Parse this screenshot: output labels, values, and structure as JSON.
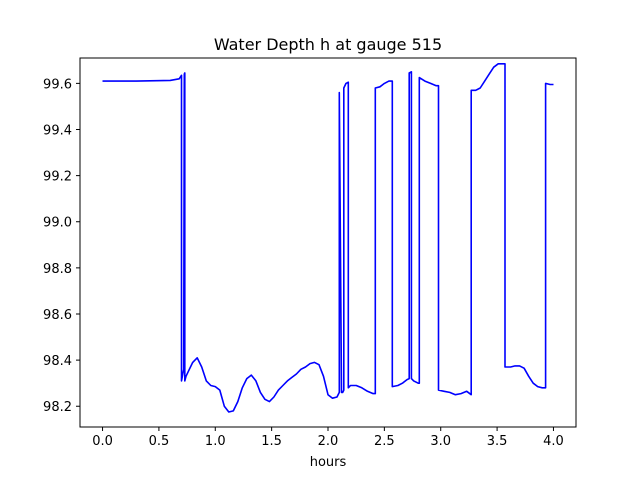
{
  "chart_data": {
    "type": "line",
    "title": "Water Depth h at gauge 515",
    "xlabel": "hours",
    "ylabel": "",
    "xlim": [
      -0.2,
      4.2
    ],
    "ylim": [
      98.11,
      99.71
    ],
    "xticks": [
      0.0,
      0.5,
      1.0,
      1.5,
      2.0,
      2.5,
      3.0,
      3.5,
      4.0
    ],
    "xtick_labels": [
      "0.0",
      "0.5",
      "1.0",
      "1.5",
      "2.0",
      "2.5",
      "3.0",
      "3.5",
      "4.0"
    ],
    "yticks": [
      98.2,
      98.4,
      98.6,
      98.8,
      99.0,
      99.2,
      99.4,
      99.6
    ],
    "ytick_labels": [
      "98.2",
      "98.4",
      "98.6",
      "98.8",
      "99.0",
      "99.2",
      "99.4",
      "99.6"
    ],
    "grid": false,
    "series": [
      {
        "color": "#0000ff",
        "x": [
          0.0,
          0.3,
          0.6,
          0.68,
          0.7,
          0.7,
          0.72,
          0.725,
          0.73,
          0.73,
          0.74,
          0.76,
          0.8,
          0.84,
          0.88,
          0.92,
          0.96,
          1.0,
          1.04,
          1.08,
          1.12,
          1.16,
          1.2,
          1.24,
          1.28,
          1.32,
          1.36,
          1.4,
          1.44,
          1.48,
          1.52,
          1.56,
          1.6,
          1.64,
          1.68,
          1.72,
          1.76,
          1.8,
          1.84,
          1.88,
          1.92,
          1.96,
          2.0,
          2.04,
          2.08,
          2.1,
          2.1,
          2.12,
          2.13,
          2.14,
          2.14,
          2.16,
          2.18,
          2.18,
          2.2,
          2.25,
          2.3,
          2.35,
          2.4,
          2.42,
          2.42,
          2.46,
          2.5,
          2.54,
          2.56,
          2.57,
          2.57,
          2.62,
          2.66,
          2.7,
          2.72,
          2.72,
          2.74,
          2.74,
          2.76,
          2.8,
          2.81,
          2.81,
          2.86,
          2.91,
          2.96,
          2.98,
          2.98,
          3.03,
          3.08,
          3.13,
          3.18,
          3.23,
          3.27,
          3.27,
          3.31,
          3.35,
          3.39,
          3.43,
          3.47,
          3.51,
          3.55,
          3.57,
          3.57,
          3.62,
          3.66,
          3.7,
          3.74,
          3.78,
          3.82,
          3.86,
          3.9,
          3.93,
          3.93,
          3.97,
          4.0
        ],
        "y": [
          99.61,
          99.61,
          99.613,
          99.62,
          99.635,
          98.31,
          98.36,
          99.64,
          99.645,
          98.31,
          98.33,
          98.35,
          98.39,
          98.41,
          98.37,
          98.31,
          98.29,
          98.285,
          98.27,
          98.2,
          98.175,
          98.18,
          98.22,
          98.28,
          98.32,
          98.335,
          98.31,
          98.26,
          98.23,
          98.22,
          98.24,
          98.27,
          98.29,
          98.31,
          98.325,
          98.34,
          98.36,
          98.37,
          98.385,
          98.39,
          98.38,
          98.33,
          98.25,
          98.235,
          98.24,
          98.26,
          99.56,
          98.26,
          98.26,
          98.27,
          99.58,
          99.6,
          99.605,
          98.28,
          98.29,
          98.29,
          98.28,
          98.265,
          98.255,
          98.255,
          99.58,
          99.585,
          99.6,
          99.61,
          99.61,
          99.61,
          98.285,
          98.29,
          98.3,
          98.315,
          98.32,
          99.645,
          99.65,
          98.32,
          98.31,
          98.3,
          98.3,
          99.625,
          99.61,
          99.6,
          99.59,
          99.59,
          98.27,
          98.265,
          98.26,
          98.25,
          98.255,
          98.265,
          98.25,
          99.57,
          99.57,
          99.58,
          99.61,
          99.64,
          99.67,
          99.685,
          99.685,
          99.685,
          98.37,
          98.37,
          98.375,
          98.375,
          98.365,
          98.33,
          98.3,
          98.285,
          98.28,
          98.28,
          99.6,
          99.595,
          99.595
        ]
      }
    ]
  }
}
